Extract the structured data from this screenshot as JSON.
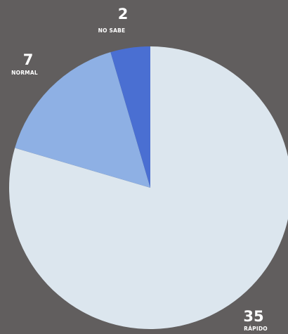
{
  "chart_data": {
    "type": "pie",
    "categories": [
      "RÁPIDO",
      "NORMAL",
      "NO SABE"
    ],
    "values": [
      35,
      7,
      2
    ],
    "colors": [
      "#dce6ee",
      "#8eb0e4",
      "#4a6fd2"
    ],
    "start_angle_deg": 0,
    "direction": "clockwise",
    "background": "#615e5e",
    "legend": "none"
  }
}
